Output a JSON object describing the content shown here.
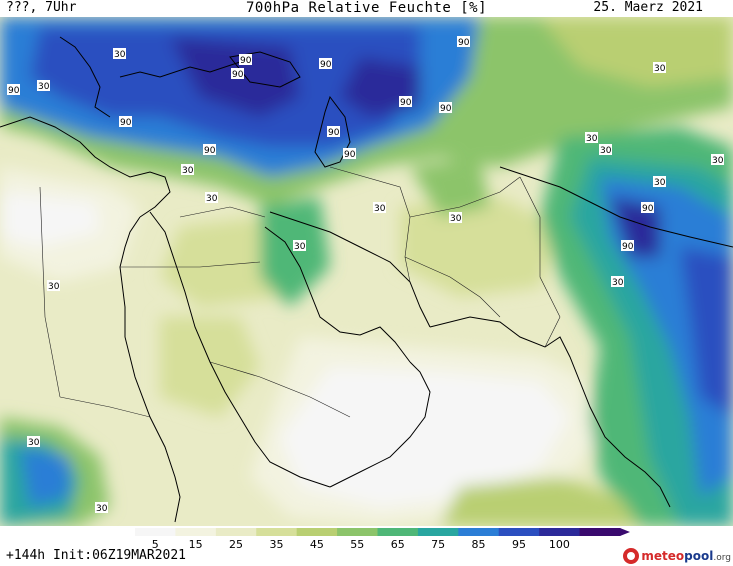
{
  "header": {
    "left": "???, 7Uhr",
    "title": "700hPa Relative Feuchte [%]",
    "date": "25. Maerz 2021"
  },
  "footer": {
    "run_info": "+144h Init:06Z19MAR2021",
    "logo": {
      "brand_red": "meteo",
      "brand_blue": "pool",
      "suffix": ".org"
    }
  },
  "legend": {
    "ticks": [
      "5",
      "15",
      "25",
      "35",
      "45",
      "55",
      "65",
      "75",
      "85",
      "95",
      "100"
    ],
    "colors": [
      "#f6f6f6",
      "#f3f3e0",
      "#e9ebc6",
      "#d6df9a",
      "#b9cf72",
      "#8cc46a",
      "#4fb777",
      "#29a6a0",
      "#2b7ed6",
      "#2b4fc0",
      "#2c2a9a",
      "#3a0a6e"
    ]
  },
  "map_labels": {
    "contour_value_high": "90",
    "contour_value_low": "30"
  }
}
